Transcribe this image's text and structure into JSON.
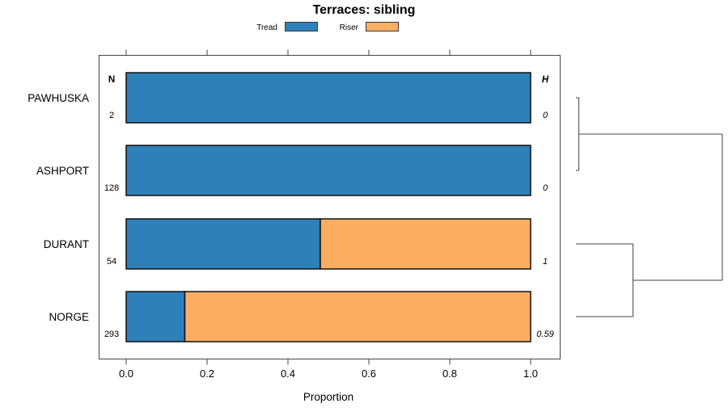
{
  "chart_data": {
    "type": "bar",
    "subtype": "horizontal-stacked-proportion-with-dendrogram",
    "title": "Terraces: sibling",
    "xlabel": "Proportion",
    "xlim": [
      0,
      1
    ],
    "x_ticks": [
      0,
      0.2,
      0.4,
      0.6,
      0.8,
      1.0
    ],
    "x_tick_labels": [
      "0.0",
      "0.2",
      "0.4",
      "0.6",
      "0.8",
      "1.0"
    ],
    "categories": [
      "PAWHUSKA",
      "ASHPORT",
      "DURANT",
      "NORGE"
    ],
    "columns": {
      "left_header": "N",
      "right_header": "H"
    },
    "n_values": [
      "2",
      "128",
      "54",
      "293"
    ],
    "h_values": [
      "0",
      "0",
      "1",
      "0.59"
    ],
    "series": [
      {
        "name": "Tread",
        "color": "#2e80b8",
        "values": [
          1.0,
          1.0,
          0.48,
          0.145
        ]
      },
      {
        "name": "Riser",
        "color": "#fbad62",
        "values": [
          0,
          0,
          0.52,
          0.855
        ]
      }
    ],
    "legend": {
      "position": "top",
      "entries": [
        {
          "label": "Tread",
          "color": "#2e80b8"
        },
        {
          "label": "Riser",
          "color": "#fbad62"
        }
      ]
    },
    "grid": false,
    "bar_border_color": "#111111",
    "axis_color": "#444444",
    "dendrogram": {
      "side": "right",
      "merges": [
        {
          "a": {
            "leaf": 0
          },
          "b": {
            "leaf": 1
          },
          "h": 0.02
        },
        {
          "a": {
            "leaf": 2
          },
          "b": {
            "leaf": 3
          },
          "h": 0.39
        },
        {
          "a": {
            "merge": 0
          },
          "b": {
            "merge": 1
          },
          "h": 1.0
        }
      ]
    }
  }
}
